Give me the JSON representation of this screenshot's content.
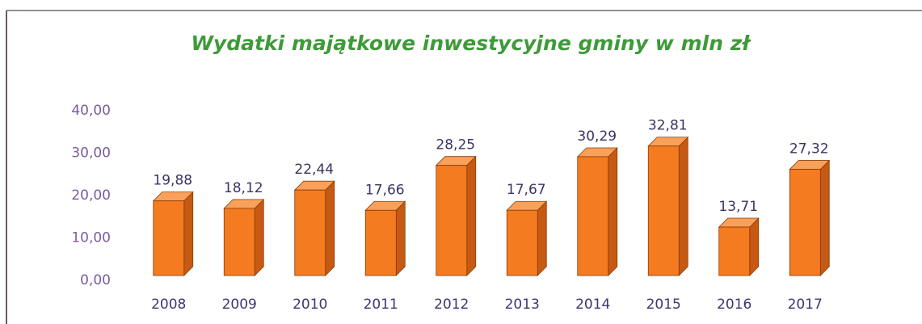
{
  "chart_data": {
    "type": "bar3d",
    "title": "Wydatki majątkowe inwestycyjne gminy w mln zł",
    "categories": [
      "2008",
      "2009",
      "2010",
      "2011",
      "2012",
      "2013",
      "2014",
      "2015",
      "2016",
      "2017"
    ],
    "values": [
      19.88,
      18.12,
      22.44,
      17.66,
      28.25,
      17.67,
      30.29,
      32.81,
      13.71,
      27.32
    ],
    "value_labels": [
      "19,88",
      "18,12",
      "22,44",
      "17,66",
      "28,25",
      "17,67",
      "30,29",
      "32,81",
      "13,71",
      "27,32"
    ],
    "color": "#f47b20",
    "ylim": [
      0,
      40
    ],
    "yticks": [
      {
        "value": 0,
        "label": "0,00"
      },
      {
        "value": 10,
        "label": "10,00"
      },
      {
        "value": 20,
        "label": "20,00"
      },
      {
        "value": 30,
        "label": "30,00"
      },
      {
        "value": 40,
        "label": "40,00"
      }
    ],
    "grid": false
  }
}
